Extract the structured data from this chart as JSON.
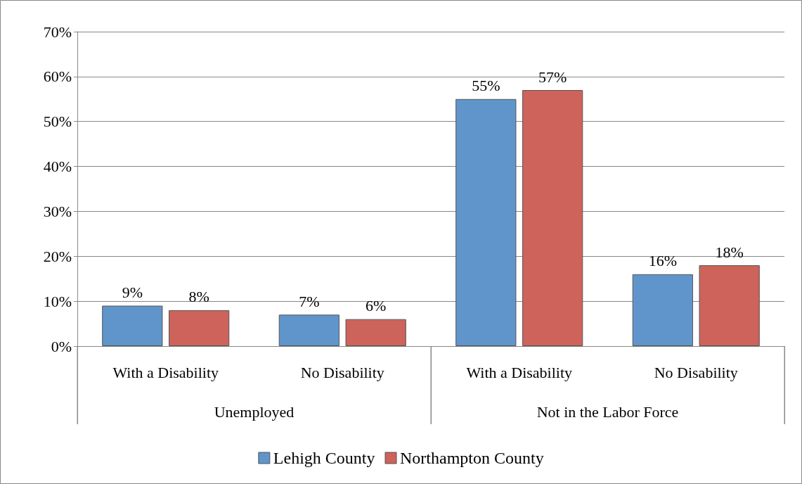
{
  "chart_data": {
    "type": "bar",
    "categories": [
      "With a Disability",
      "No Disability",
      "With a Disability",
      "No Disability"
    ],
    "series": [
      {
        "name": "Lehigh County",
        "color": "#5f95cb",
        "values": [
          9,
          7,
          55,
          16
        ],
        "value_labels": [
          "9%",
          "7%",
          "55%",
          "16%"
        ]
      },
      {
        "name": "Northampton County",
        "color": "#cd635b",
        "values": [
          8,
          6,
          57,
          18
        ],
        "value_labels": [
          "8%",
          "6%",
          "57%",
          "18%"
        ]
      }
    ],
    "annotations": [
      "Unemployed",
      "Not in the Labor Force"
    ],
    "ylim": [
      0,
      70
    ],
    "yticks": [
      {
        "value": 0,
        "label": "0%"
      },
      {
        "value": 10,
        "label": "10%"
      },
      {
        "value": 20,
        "label": "20%"
      },
      {
        "value": 30,
        "label": "30%"
      },
      {
        "value": 40,
        "label": "40%"
      },
      {
        "value": 50,
        "label": "50%"
      },
      {
        "value": 60,
        "label": "60%"
      },
      {
        "value": 70,
        "label": "70%"
      }
    ],
    "grid": "y",
    "legend": "bottom"
  }
}
